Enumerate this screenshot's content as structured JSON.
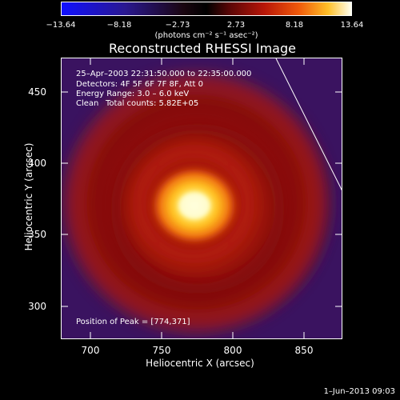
{
  "colorbar": {
    "tick_labels": [
      "−13.64",
      "−8.18",
      "−2.73",
      "2.73",
      "8.18",
      "13.64"
    ],
    "units": "(photons cm⁻² s⁻¹ asec⁻²)"
  },
  "title": "Reconstructed RHESSI Image",
  "info": {
    "time_range": "25–Apr–2003 22:31:50.000 to 22:35:00.000",
    "detectors": "Detectors: 4F 5F 6F 7F 8F, Att 0",
    "energy_range": "Energy Range: 3.0 – 6.0 keV",
    "algorithm": "Clean",
    "total_counts": "Total counts: 5.82E+05",
    "peak_position": "Position of Peak = [774,371]"
  },
  "axes": {
    "x_label": "Heliocentric X (arcsec)",
    "y_label": "Heliocentric Y (arcsec)",
    "x_tick_labels": [
      "700",
      "750",
      "800",
      "850"
    ],
    "y_tick_labels": [
      "450",
      "400",
      "350",
      "300"
    ]
  },
  "timestamp": "1–Jun–2013 09:03",
  "colors": {
    "background": "#000000",
    "frame": "#ffffff",
    "image_background": "#3a1360",
    "peak": "#ffffd0"
  }
}
